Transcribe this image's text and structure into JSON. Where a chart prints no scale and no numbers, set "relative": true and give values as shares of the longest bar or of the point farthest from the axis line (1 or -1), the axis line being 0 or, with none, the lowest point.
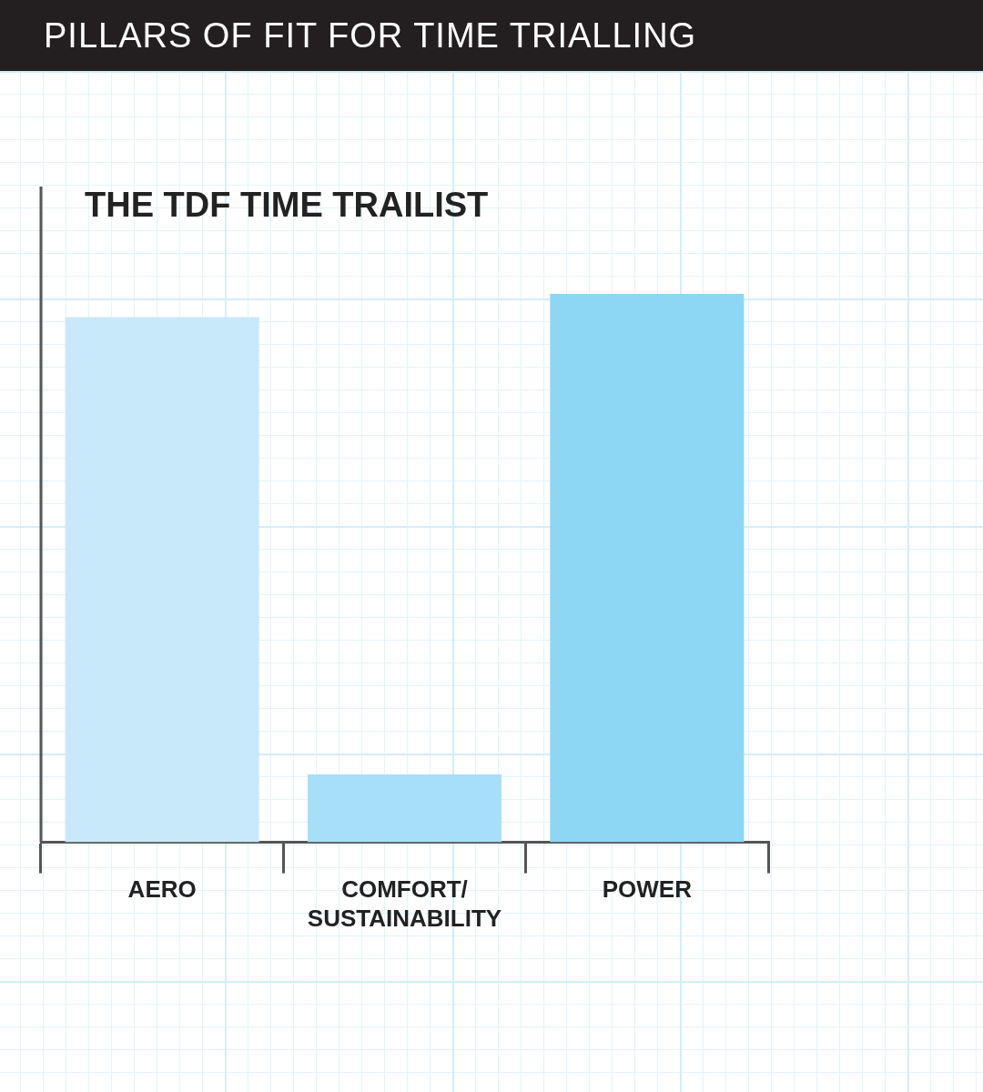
{
  "chart_data": {
    "type": "bar",
    "title": "PILLARS OF FIT FOR TIME TRIALLING",
    "subtitle": "THE TDF TIME TRAILIST",
    "categories": [
      "AERO",
      "COMFORT/ SUSTAINABILITY",
      "POWER"
    ],
    "values": [
      0.958,
      0.124,
      1
    ],
    "colors": [
      "#c8e9f9",
      "#a8dff8",
      "#8dd7f5"
    ],
    "relative": true,
    "grid": false,
    "legend": false
  }
}
